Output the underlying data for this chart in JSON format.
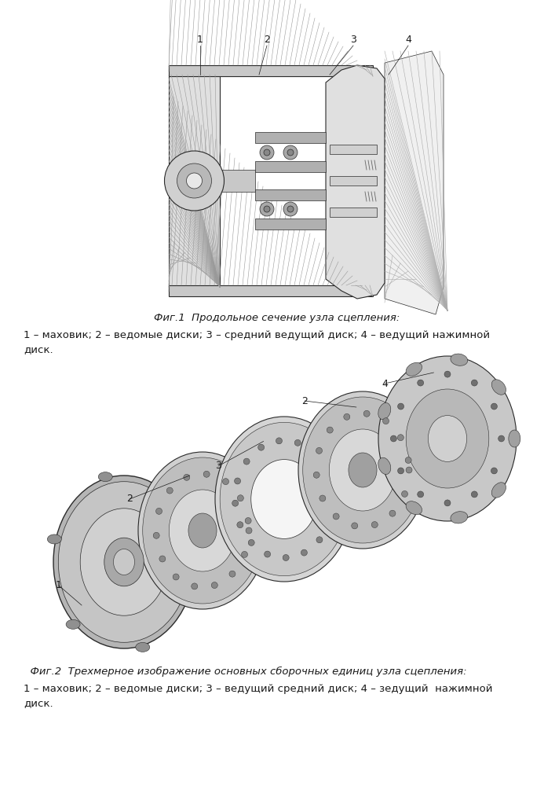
{
  "background_color": "#ffffff",
  "fig_width": 7.07,
  "fig_height": 10.0,
  "fig1_title": "Фиг.1  Продольное сечение узла сцепления:",
  "fig1_caption_line1": "1 – маховик; 2 – ведомые диски; 3 – средний ведущий диск; 4 – ведущий нажимной",
  "fig1_caption_line2": "диск.",
  "fig2_title": "  Фиг.2  Трехмерное изображение основных сборочных единиц узла сцепления:",
  "fig2_caption_line1": "1 – маховик; 2 – ведомые диски; 3 – ведущий средний диск; 4 – зедущий  нажимной",
  "fig2_caption_line2": "диск.",
  "label_color": "#1a1a1a",
  "text_color": "#1a1a1a",
  "font_size_title": 9.5,
  "font_size_caption": 9.5,
  "font_size_labels": 9.0
}
